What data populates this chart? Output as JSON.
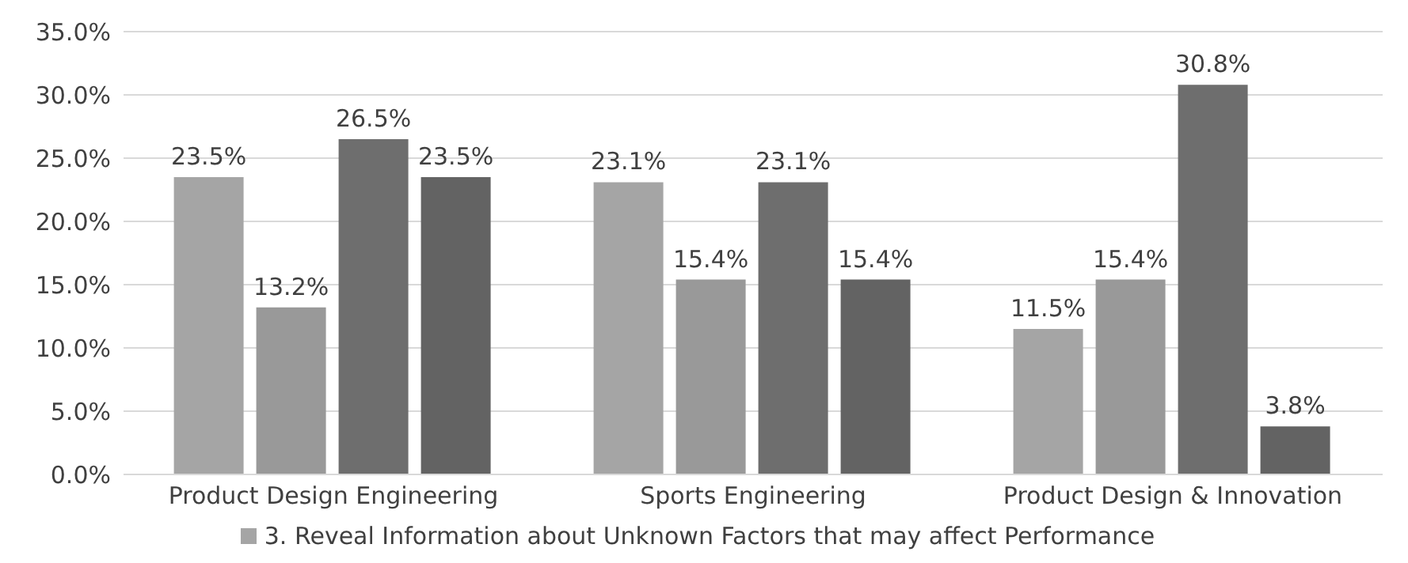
{
  "chart_data": {
    "type": "bar",
    "categories": [
      "Product Design Engineering",
      "Sports Engineering",
      "Product Design & Innovation"
    ],
    "series": [
      {
        "name": "3. Reveal Information about Unknown Factors that may affect Performance",
        "color": "#a5a5a5",
        "values": [
          23.5,
          23.1,
          11.5
        ],
        "value_labels": [
          "23.5%",
          "23.1%",
          "11.5%"
        ]
      },
      {
        "color": "#999999",
        "values": [
          13.2,
          15.4,
          15.4
        ],
        "value_labels": [
          "13.2%",
          "15.4%",
          "15.4%"
        ]
      },
      {
        "color": "#6e6e6e",
        "values": [
          26.5,
          23.1,
          30.8
        ],
        "value_labels": [
          "26.5%",
          "23.1%",
          "30.8%"
        ]
      },
      {
        "color": "#636363",
        "values": [
          23.5,
          15.4,
          3.8
        ],
        "value_labels": [
          "23.5%",
          "15.4%",
          "3.8%"
        ]
      }
    ],
    "ylim": [
      0,
      35
    ],
    "yticks": [
      {
        "value": 0,
        "label": "0.0%"
      },
      {
        "value": 5,
        "label": "5.0%"
      },
      {
        "value": 10,
        "label": "10.0%"
      },
      {
        "value": 15,
        "label": "15.0%"
      },
      {
        "value": 20,
        "label": "20.0%"
      },
      {
        "value": 25,
        "label": "25.0%"
      },
      {
        "value": 30,
        "label": "30.0%"
      },
      {
        "value": 35,
        "label": "35.0%"
      }
    ],
    "grid": "y",
    "legend": "bottom"
  }
}
